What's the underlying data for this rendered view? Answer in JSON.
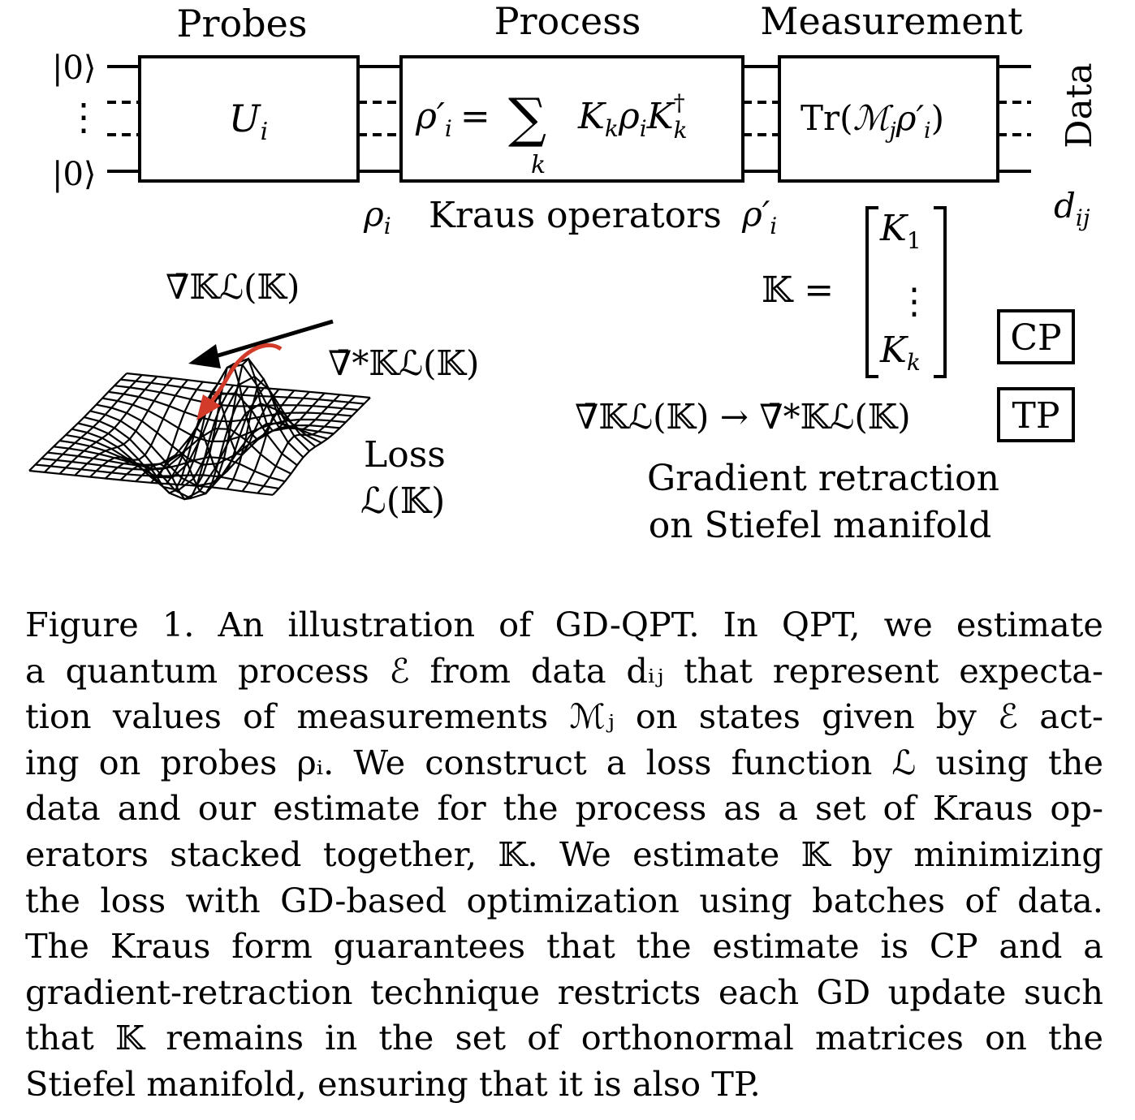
{
  "figure": {
    "stage_labels": {
      "probes": "Probes",
      "process": "Process",
      "measurement": "Measurement"
    },
    "input_ket_top": "|0⟩",
    "input_ket_bottom": "|0⟩",
    "vertical_dots": "⋮",
    "unitary_box": {
      "symbol": "U",
      "subscript": "i"
    },
    "process_box": {
      "lhs": "ρ′",
      "lhs_sub": "i",
      "equals": "=",
      "sum": "∑",
      "sum_sub": "k",
      "rhs_K": "K",
      "rhs_K_sub": "k",
      "rhs_rho": "ρ",
      "rhs_rho_sub": "i",
      "rhs_Kdag": "K",
      "dag": "†",
      "rhs_Kdag_sub": "k"
    },
    "measurement_box": {
      "tr": "Tr(",
      "M": "ℳ",
      "M_sub": "j",
      "rho": "ρ′",
      "rho_sub": "i",
      "close": ")"
    },
    "output_label": "Data",
    "rho_i_label": {
      "sym": "ρ",
      "sub": "i"
    },
    "kraus_label": "Kraus operators",
    "rho_prime_label": {
      "sym": "ρ′",
      "sub": "i"
    },
    "data_label": {
      "sym": "d",
      "sub": "ij"
    },
    "stack": {
      "lhs": "𝕂 =",
      "top": "K",
      "top_sub": "1",
      "dots": "⋮",
      "bottom": "K",
      "bottom_sub": "k"
    },
    "cp_badge": "CP",
    "tp_badge": "TP",
    "grad_label": "∇̄𝕂ℒ(𝕂)",
    "grad_star_label": "∇̄*𝕂ℒ(𝕂)",
    "retraction_formula": "∇̄𝕂ℒ(𝕂) → ∇̄*𝕂ℒ(𝕂)",
    "retraction_caption_1": "Gradient retraction",
    "retraction_caption_2": "on Stiefel manifold",
    "loss_label_1": "Loss",
    "loss_label_2": "ℒ(𝕂)",
    "colors": {
      "retraction_arrow": "#d23a2a",
      "gradient_arrow": "#000000"
    }
  },
  "caption": {
    "lines": [
      "Figure 1.  An illustration of GD-QPT. In QPT, we estimate",
      "a quantum process ℰ from data dᵢⱼ that represent expecta-",
      "tion values of measurements ℳⱼ on states given by ℰ act-",
      "ing on probes ρᵢ.  We construct a loss function ℒ using the",
      "data and our estimate for the process as a set of Kraus op-",
      "erators stacked together, 𝕂.  We estimate 𝕂 by minimizing",
      "the loss with GD-based optimization using batches of data.",
      "The Kraus form guarantees that the estimate is CP and a",
      "gradient-retraction technique restricts each GD update such",
      "that 𝕂 remains in the set of orthonormal matrices on the",
      "Stiefel manifold, ensuring that it is also TP."
    ]
  }
}
